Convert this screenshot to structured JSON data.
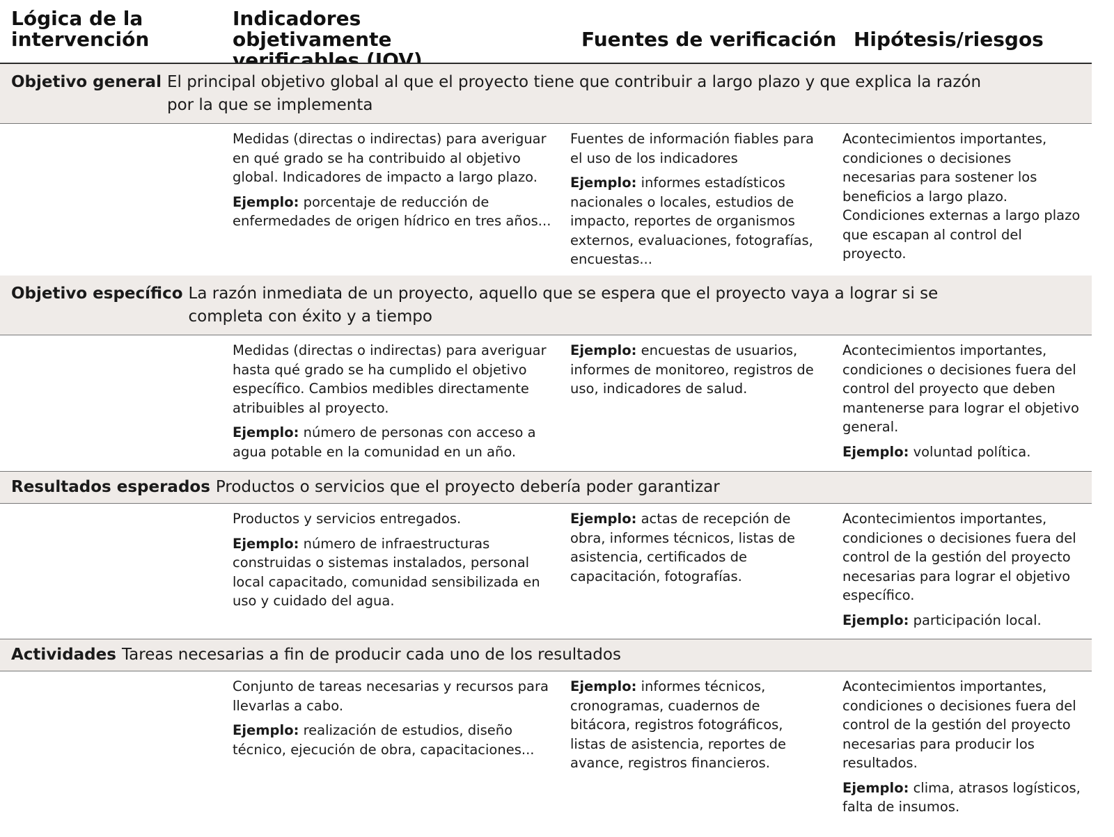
{
  "headers": {
    "col1": "Lógica de la intervención",
    "col2": "Indicadores objetivamente verificables (IOV)",
    "col3": "Fuentes de verificación",
    "col4": "Hipótesis/riesgos"
  },
  "colors": {
    "band_background": "#efebe8",
    "rule": "#2a2a2a"
  },
  "rows": [
    {
      "title": "Objetivo general",
      "description": "El principal objetivo global al que el proyecto tiene que contribuir a largo plazo y que explica la razón por la que se implementa",
      "iov": [
        {
          "text": "Medidas (directas o indirectas) para averiguar en qué grado se ha contribuido al objetivo global. Indicadores de impacto a largo plazo."
        },
        {
          "label": "Ejemplo:",
          "text": " porcentaje de reducción de enfermedades de origen hídrico en tres años..."
        }
      ],
      "sources": [
        {
          "text": "Fuentes de información fiables para el uso de los indicadores"
        },
        {
          "label": "Ejemplo:",
          "text": " informes estadísticos nacionales o locales, estudios de impacto, reportes de organismos externos, evaluaciones, fotografías, encuestas..."
        }
      ],
      "risks": [
        {
          "text": "Acontecimientos importantes, condiciones o decisiones necesarias para sostener los beneficios a largo plazo. Condiciones externas a largo plazo que escapan al control del proyecto."
        }
      ]
    },
    {
      "title": "Objetivo específico",
      "description": "La razón inmediata de un proyecto, aquello que se espera que el proyecto vaya a lograr si se completa con éxito y a tiempo",
      "iov": [
        {
          "text": "Medidas (directas o indirectas) para averiguar hasta qué grado se ha cumplido el objetivo específico. Cambios medibles directamente atribuibles al proyecto."
        },
        {
          "label": "Ejemplo:",
          "text": " número de personas con acceso a agua potable en la comunidad en un año."
        }
      ],
      "sources": [
        {
          "label": "Ejemplo:",
          "text": " encuestas de usuarios, informes de monitoreo, registros de uso, indicadores de salud."
        }
      ],
      "risks": [
        {
          "text": "Acontecimientos importantes, condiciones o decisiones fuera del control del proyecto que deben mantenerse para lograr el objetivo general."
        },
        {
          "label": "Ejemplo:",
          "text": " voluntad política."
        }
      ]
    },
    {
      "title": "Resultados esperados",
      "description": "Productos o servicios que el proyecto debería poder garantizar",
      "iov": [
        {
          "text": "Productos y servicios entregados."
        },
        {
          "label": "Ejemplo:",
          "text": " número de infraestructuras construidas o sistemas instalados, personal local capacitado, comunidad sensibilizada en uso y cuidado del agua."
        }
      ],
      "sources": [
        {
          "label": "Ejemplo:",
          "text": " actas de recepción de obra, informes técnicos, listas de asistencia, certificados de capacitación, fotografías."
        }
      ],
      "risks": [
        {
          "text": "Acontecimientos importantes, condiciones o decisiones fuera del control de la gestión del proyecto necesarias para lograr el objetivo específico."
        },
        {
          "label": "Ejemplo:",
          "text": " participación local."
        }
      ]
    },
    {
      "title": "Actividades",
      "description": "Tareas necesarias a fin de producir cada uno de los resultados",
      "iov": [
        {
          "text": "Conjunto de tareas necesarias y recursos para llevarlas a cabo."
        },
        {
          "label": "Ejemplo:",
          "text": " realización de estudios, diseño técnico, ejecución de obra, capacitaciones..."
        }
      ],
      "sources": [
        {
          "label": "Ejemplo:",
          "text": " informes técnicos, cronogramas, cuadernos de bitácora, registros fotográficos, listas de asistencia, reportes de avance, registros financieros."
        }
      ],
      "risks": [
        {
          "text": "Acontecimientos importantes, condiciones o decisiones fuera del control de la gestión del proyecto necesarias para producir los resultados."
        },
        {
          "label": "Ejemplo:",
          "text": " clima, atrasos logísticos, falta de insumos."
        }
      ]
    }
  ]
}
